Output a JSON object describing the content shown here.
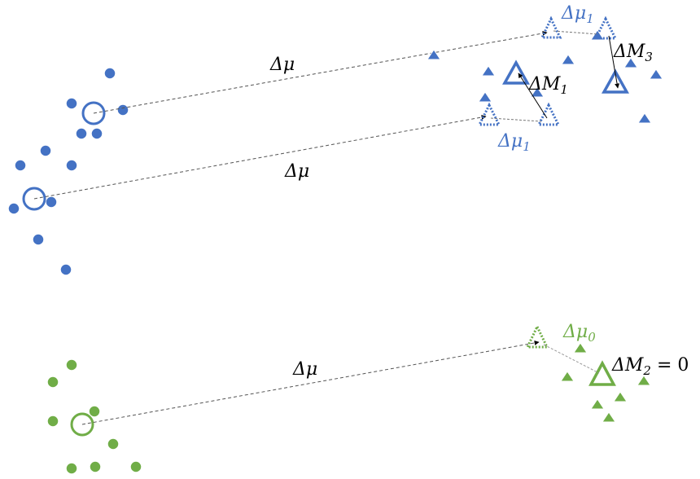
{
  "colors": {
    "blue": "#4472c4",
    "green": "#70ad47",
    "line": "#555555",
    "text": "#000000"
  },
  "labels": {
    "delta_mu_top": "Δμ",
    "delta_mu_middle": "Δμ",
    "delta_mu_bottom": "Δμ",
    "delta_mu1_top": {
      "base": "Δμ",
      "sub": "1"
    },
    "delta_mu1_middle": {
      "base": "Δμ",
      "sub": "1"
    },
    "delta_mu0": {
      "base": "Δμ",
      "sub": "0"
    },
    "delta_M1": {
      "base": "ΔM",
      "sub": "1"
    },
    "delta_M3": {
      "base": "ΔM",
      "sub": "3"
    },
    "delta_M2": {
      "base": "ΔM",
      "sub": "2",
      "suffix": " = 0"
    }
  },
  "groups": {
    "source_blue": {
      "color": "blue",
      "shape": "circle-dot"
    },
    "target_blue": {
      "color": "blue",
      "shape": "triangle"
    },
    "source_green": {
      "color": "green",
      "shape": "circle-dot"
    },
    "target_green": {
      "color": "green",
      "shape": "triangle"
    }
  }
}
